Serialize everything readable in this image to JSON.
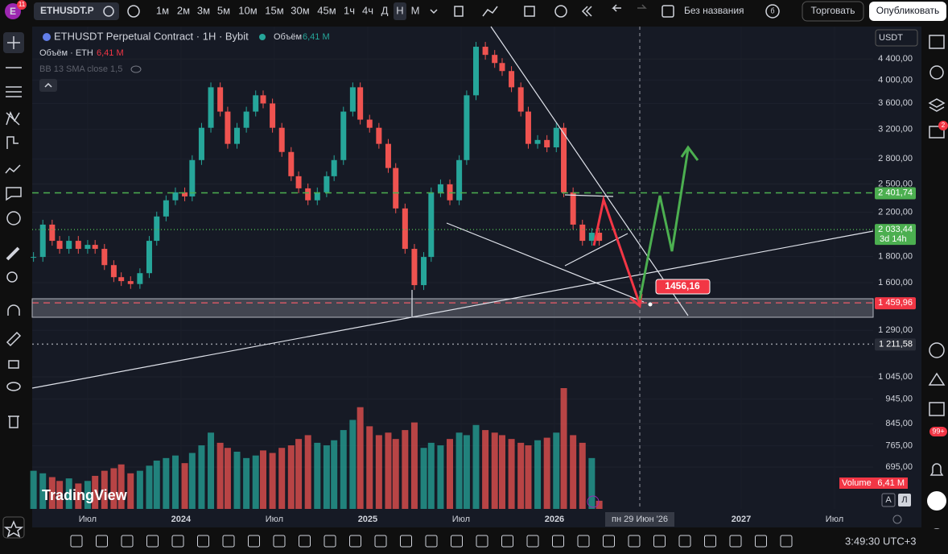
{
  "top_bar": {
    "badge": "11",
    "symbol": "ETHUSDT.P",
    "intervals": [
      "1м",
      "2м",
      "3м",
      "5м",
      "10м",
      "15м",
      "30м",
      "45м",
      "1ч",
      "4ч",
      "Д",
      "Н",
      "М"
    ],
    "active_interval": "Н",
    "layout_name": "Без названия",
    "layout_badge": "б",
    "trade": "Торговать",
    "publish": "Опубликовать"
  },
  "legend": {
    "title": "ETHUSDT Perpetual Contract · 1Н · Bybit",
    "volume_label": "Объём",
    "volume_value": "6,41 M",
    "row2_label": "Объём · ETH",
    "row2_value": "6,41 M",
    "indicator": "BB 13 SMA close 1,5"
  },
  "currency": "USDT",
  "chart_data": {
    "type": "candlestick",
    "log_scale": true,
    "up_color": "#26a69a",
    "down_color": "#ef5350",
    "x": [
      2023.21,
      2023.26,
      2023.31,
      2023.35,
      2023.4,
      2023.45,
      2023.5,
      2023.54,
      2023.59,
      2023.64,
      2023.68,
      2023.73,
      2023.78,
      2023.83,
      2023.87,
      2023.92,
      2023.97,
      2024.02,
      2024.06,
      2024.11,
      2024.16,
      2024.21,
      2024.25,
      2024.3,
      2024.35,
      2024.4,
      2024.44,
      2024.49,
      2024.54,
      2024.59,
      2024.63,
      2024.68,
      2024.73,
      2024.78,
      2024.82,
      2024.87,
      2024.92,
      2024.96,
      2025.01,
      2025.06,
      2025.11,
      2025.15,
      2025.2,
      2025.25,
      2025.3,
      2025.34,
      2025.39,
      2025.44,
      2025.49,
      2025.53,
      2025.58,
      2025.63,
      2025.68,
      2025.72,
      2025.77,
      2025.82,
      2025.86,
      2025.91,
      2025.96,
      2026.01,
      2026.05,
      2026.1,
      2026.15,
      2026.2,
      2026.24
    ],
    "series": [
      {
        "name": "ETHUSDT",
        "values": [
          1797,
          2080,
          1933,
          1864,
          1933,
          1864,
          1898,
          1864,
          1732,
          1640,
          1611,
          1590,
          1670,
          1933,
          2158,
          2322,
          2407,
          2363,
          2785,
          3223,
          3871,
          3468,
          2997,
          3223,
          3468,
          3733,
          3598,
          3223,
          2889,
          2589,
          2451,
          2322,
          2407,
          2589,
          2785,
          3468,
          3871,
          3344,
          3223,
          2997,
          2687,
          2238,
          1864,
          1582,
          1797,
          2407,
          2496,
          2322,
          2785,
          3733,
          4650,
          4482,
          4320,
          4166,
          3871,
          3468,
          2997,
          3050,
          2950,
          3223,
          2407,
          2080,
          1933,
          2005,
          1933
        ]
      },
      {
        "name": "Volume",
        "values": [
          30,
          28,
          25,
          22,
          24,
          20,
          22,
          26,
          30,
          32,
          35,
          28,
          30,
          34,
          38,
          40,
          42,
          36,
          44,
          50,
          60,
          52,
          48,
          45,
          40,
          42,
          46,
          44,
          48,
          50,
          55,
          58,
          52,
          50,
          54,
          62,
          70,
          80,
          65,
          58,
          60,
          55,
          62,
          68,
          48,
          52,
          50,
          55,
          60,
          58,
          66,
          62,
          60,
          58,
          55,
          52,
          50,
          54,
          56,
          60,
          95,
          58,
          52,
          40,
          6.41
        ],
        "value_label": "6,41 M",
        "label": "Volume"
      }
    ],
    "xlim": [
      2023.203,
      2027.707
    ],
    "xticks": [
      {
        "value": 2023.5,
        "label": "Июл"
      },
      {
        "value": 2024,
        "label": "2024"
      },
      {
        "value": 2024.5,
        "label": "Июл"
      },
      {
        "value": 2025,
        "label": "2025"
      },
      {
        "value": 2025.5,
        "label": "Июл"
      },
      {
        "value": 2026,
        "label": "2026"
      },
      {
        "value": 2027,
        "label": "2027"
      },
      {
        "value": 2027.5,
        "label": "Июл"
      }
    ],
    "ylim": [
      575,
      5094
    ],
    "yticks": [
      {
        "value": 4400,
        "label": "4 400,00"
      },
      {
        "value": 4000,
        "label": "4 000,00"
      },
      {
        "value": 3600,
        "label": "3 600,00"
      },
      {
        "value": 3200,
        "label": "3 200,00"
      },
      {
        "value": 2800,
        "label": "2 800,00"
      },
      {
        "value": 2500,
        "label": "2 500,00"
      },
      {
        "value": 2200,
        "label": "2 200,00"
      },
      {
        "value": 1800,
        "label": "1 800,00"
      },
      {
        "value": 1600,
        "label": "1 600,00"
      },
      {
        "value": 1290,
        "label": "1 290,00"
      },
      {
        "value": 1045,
        "label": "1 045,00"
      },
      {
        "value": 945,
        "label": "945,00"
      },
      {
        "value": 845,
        "label": "845,00"
      },
      {
        "value": 765,
        "label": "765,00"
      },
      {
        "value": 695,
        "label": "695,00"
      }
    ],
    "price_lines": [
      {
        "value": 2401.74,
        "label": "2 401,74",
        "color": "#4caf50",
        "dash": "8 6"
      },
      {
        "value": 2033.44,
        "label": "2 033,44",
        "sub": "3d 14h",
        "color": "#4caf50",
        "dash": "1 3"
      },
      {
        "value": 1459.96,
        "label": "1 459,96",
        "color": "#f23645",
        "dash": "8 6"
      },
      {
        "value": 1211.58,
        "label": "1 211,58",
        "color": "#2a2e39",
        "dash": "2 4"
      }
    ],
    "callout": "1456,16",
    "cursor_date": "пн 29 Июн '26"
  },
  "watermark": "TradingView",
  "clock": "3:49:30 UTC+3",
  "side_badges": {
    "alerts": "2",
    "notifications": "99+"
  },
  "scale_buttons": [
    "A",
    "Л"
  ]
}
